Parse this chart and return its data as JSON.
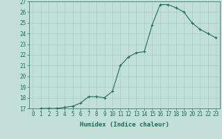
{
  "x": [
    0,
    1,
    2,
    3,
    4,
    5,
    6,
    7,
    8,
    9,
    10,
    11,
    12,
    13,
    14,
    15,
    16,
    17,
    18,
    19,
    20,
    21,
    22,
    23
  ],
  "y": [
    16.8,
    17.0,
    17.0,
    17.0,
    17.1,
    17.2,
    17.5,
    18.1,
    18.1,
    18.0,
    18.6,
    21.0,
    21.8,
    22.2,
    22.3,
    24.8,
    26.7,
    26.7,
    26.4,
    26.0,
    25.0,
    24.4,
    24.0,
    23.6
  ],
  "xlabel": "Humidex (Indice chaleur)",
  "bg_color": "#c2e0d8",
  "line_color": "#1a6b5a",
  "marker": "+",
  "grid_color": "#aaccc4",
  "ylim": [
    17,
    27
  ],
  "xlim": [
    -0.5,
    23.5
  ],
  "tick_fontsize": 5.5,
  "xlabel_fontsize": 6.5
}
